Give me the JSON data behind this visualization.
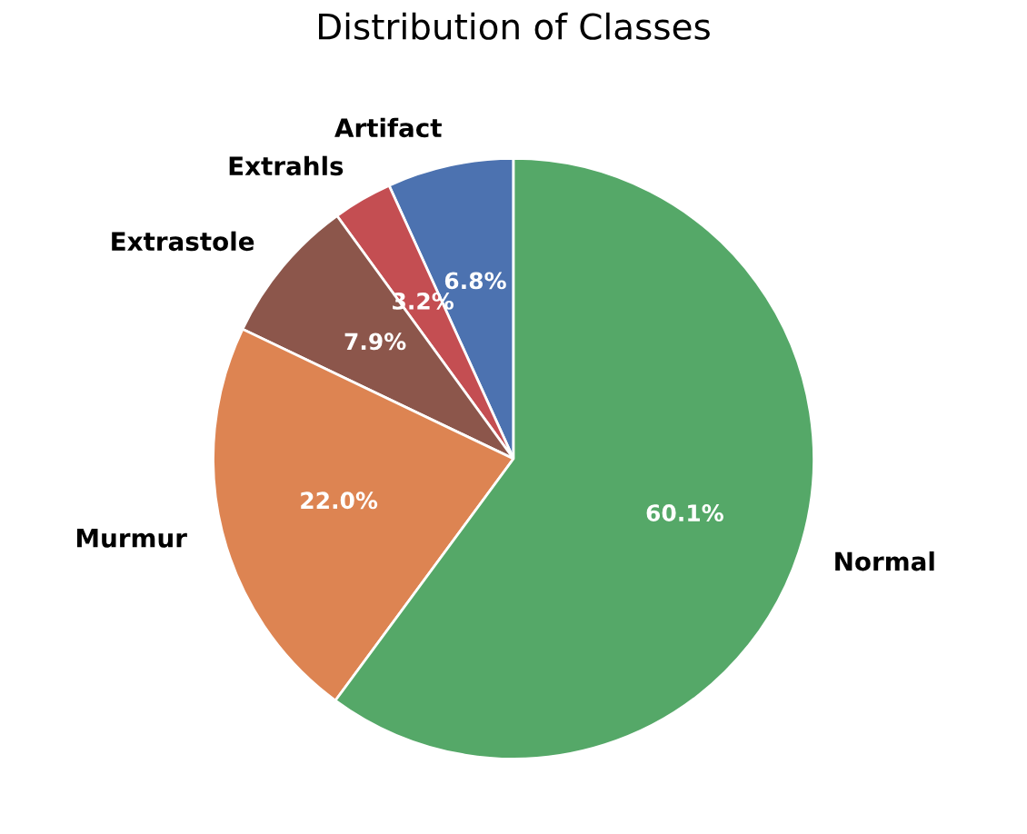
{
  "chart_data": {
    "type": "pie",
    "title": "Distribution of Classes",
    "categories": [
      "Artifact",
      "Extrahls",
      "Extrastole",
      "Murmur",
      "Normal"
    ],
    "values": [
      6.8,
      3.2,
      7.9,
      22.0,
      60.1
    ],
    "value_labels": [
      "6.8%",
      "3.2%",
      "7.9%",
      "22.0%",
      "60.1%"
    ],
    "colors": [
      "#4c72b0",
      "#c44e52",
      "#8c564b",
      "#dd8452",
      "#55a868"
    ]
  }
}
